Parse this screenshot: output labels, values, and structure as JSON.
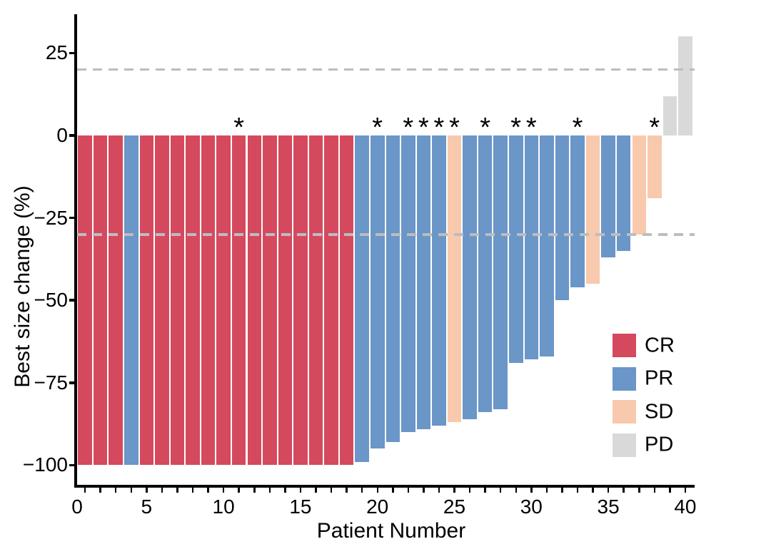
{
  "figure_title": "",
  "y_axis": {
    "title": "Best size change (%)",
    "ticks": [
      {
        "value": 25,
        "label": "25"
      },
      {
        "value": 0,
        "label": "0"
      },
      {
        "value": -25,
        "label": "−25"
      },
      {
        "value": -50,
        "label": "−50"
      },
      {
        "value": -75,
        "label": "−75"
      },
      {
        "value": -100,
        "label": "−100"
      }
    ]
  },
  "x_axis": {
    "title": "Patient Number",
    "labeled_ticks": [
      {
        "value": 0,
        "label": "0"
      },
      {
        "value": 5,
        "label": "5"
      },
      {
        "value": 10,
        "label": "10"
      },
      {
        "value": 15,
        "label": "15"
      },
      {
        "value": 20,
        "label": "20"
      },
      {
        "value": 25,
        "label": "25"
      },
      {
        "value": 30,
        "label": "30"
      },
      {
        "value": 35,
        "label": "35"
      },
      {
        "value": 40,
        "label": "40"
      }
    ],
    "minor_tick_first": 1,
    "minor_tick_last": 40
  },
  "legend": [
    {
      "key": "CR",
      "label": "CR",
      "color": "#D5495E"
    },
    {
      "key": "PR",
      "label": "PR",
      "color": "#6A96C8"
    },
    {
      "key": "SD",
      "label": "SD",
      "color": "#F8C9AC"
    },
    {
      "key": "PD",
      "label": "PD",
      "color": "#D9D9D9"
    }
  ],
  "colors": {
    "CR": "#D5495E",
    "PR": "#6A96C8",
    "SD": "#F8C9AC",
    "PD": "#D9D9D9",
    "reference_line": "#BDBDBD",
    "axis": "#000000"
  },
  "significance_marker": "*",
  "chart_data": {
    "type": "bar",
    "title": "",
    "xlabel": "Patient Number",
    "ylabel": "Best size change (%)",
    "ylim": [
      -107,
      38
    ],
    "xlim": [
      0.45,
      40.6
    ],
    "grid": false,
    "legend_position": "inside-right",
    "dashed_reference_lines_y": [
      20,
      -30
    ],
    "categories_note": "one bar per patient, sorted waterfall",
    "patients": [
      {
        "patient": 1,
        "value": -100,
        "response": "CR",
        "star": false
      },
      {
        "patient": 2,
        "value": -100,
        "response": "CR",
        "star": false
      },
      {
        "patient": 3,
        "value": -100,
        "response": "CR",
        "star": false
      },
      {
        "patient": 4,
        "value": -100,
        "response": "PR",
        "star": false
      },
      {
        "patient": 5,
        "value": -100,
        "response": "CR",
        "star": false
      },
      {
        "patient": 6,
        "value": -100,
        "response": "CR",
        "star": false
      },
      {
        "patient": 7,
        "value": -100,
        "response": "CR",
        "star": false
      },
      {
        "patient": 8,
        "value": -100,
        "response": "CR",
        "star": false
      },
      {
        "patient": 9,
        "value": -100,
        "response": "CR",
        "star": false
      },
      {
        "patient": 10,
        "value": -100,
        "response": "CR",
        "star": false
      },
      {
        "patient": 11,
        "value": -100,
        "response": "CR",
        "star": true
      },
      {
        "patient": 12,
        "value": -100,
        "response": "CR",
        "star": false
      },
      {
        "patient": 13,
        "value": -100,
        "response": "CR",
        "star": false
      },
      {
        "patient": 14,
        "value": -100,
        "response": "CR",
        "star": false
      },
      {
        "patient": 15,
        "value": -100,
        "response": "CR",
        "star": false
      },
      {
        "patient": 16,
        "value": -100,
        "response": "CR",
        "star": false
      },
      {
        "patient": 17,
        "value": -100,
        "response": "CR",
        "star": false
      },
      {
        "patient": 18,
        "value": -100,
        "response": "CR",
        "star": false
      },
      {
        "patient": 19,
        "value": -99,
        "response": "PR",
        "star": false
      },
      {
        "patient": 20,
        "value": -95,
        "response": "PR",
        "star": true
      },
      {
        "patient": 21,
        "value": -93,
        "response": "PR",
        "star": false
      },
      {
        "patient": 22,
        "value": -90,
        "response": "PR",
        "star": true
      },
      {
        "patient": 23,
        "value": -89,
        "response": "PR",
        "star": true
      },
      {
        "patient": 24,
        "value": -88,
        "response": "PR",
        "star": true
      },
      {
        "patient": 25,
        "value": -87,
        "response": "SD",
        "star": true
      },
      {
        "patient": 26,
        "value": -86,
        "response": "PR",
        "star": false
      },
      {
        "patient": 27,
        "value": -84,
        "response": "PR",
        "star": true
      },
      {
        "patient": 28,
        "value": -83,
        "response": "PR",
        "star": false
      },
      {
        "patient": 29,
        "value": -69,
        "response": "PR",
        "star": true
      },
      {
        "patient": 30,
        "value": -68,
        "response": "PR",
        "star": true
      },
      {
        "patient": 31,
        "value": -67,
        "response": "PR",
        "star": false
      },
      {
        "patient": 32,
        "value": -50,
        "response": "PR",
        "star": false
      },
      {
        "patient": 33,
        "value": -46,
        "response": "PR",
        "star": true
      },
      {
        "patient": 34,
        "value": -45,
        "response": "SD",
        "star": false
      },
      {
        "patient": 35,
        "value": -37,
        "response": "PR",
        "star": false
      },
      {
        "patient": 36,
        "value": -35,
        "response": "PR",
        "star": false
      },
      {
        "patient": 37,
        "value": -30,
        "response": "SD",
        "star": false
      },
      {
        "patient": 38,
        "value": -19,
        "response": "SD",
        "star": true
      },
      {
        "patient": 39,
        "value": 12,
        "response": "PD",
        "star": false
      },
      {
        "patient": 40,
        "value": 30,
        "response": "PD",
        "star": false
      }
    ]
  }
}
